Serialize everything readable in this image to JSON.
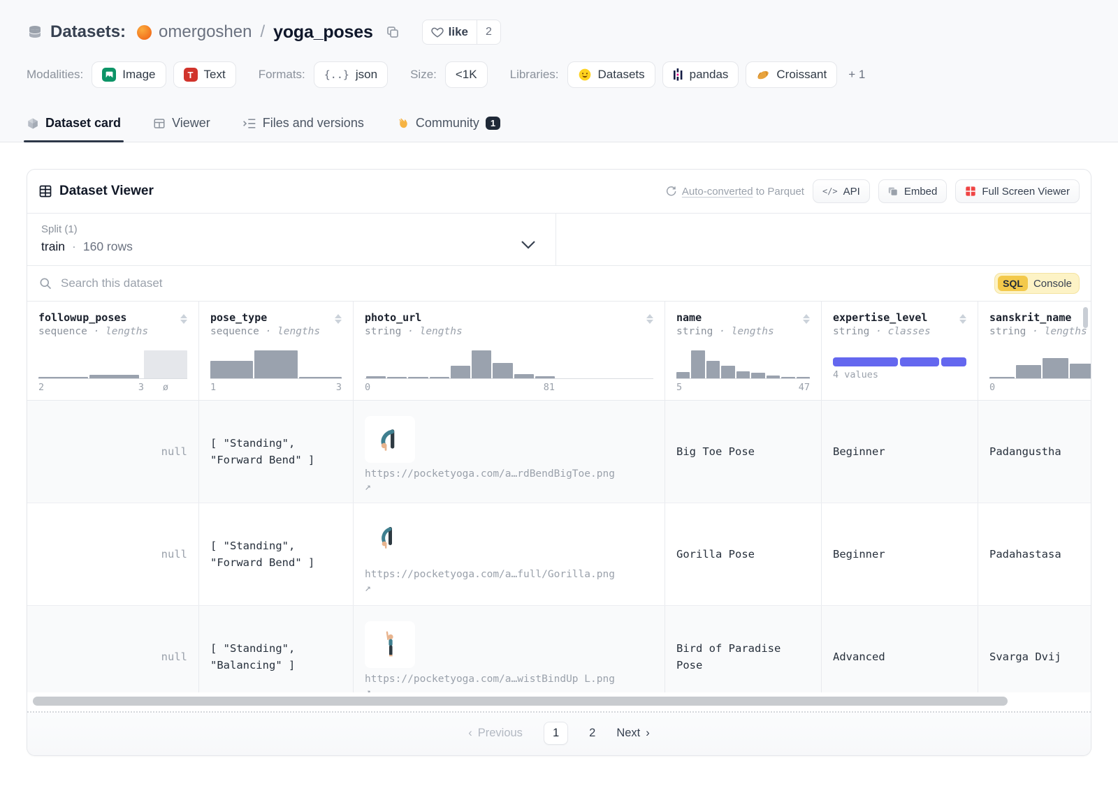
{
  "header": {
    "section_label": "Datasets:",
    "owner": "omergoshen",
    "separator": "/",
    "repo_name": "yoga_poses",
    "like_label": "like",
    "like_count": "2",
    "meta": {
      "modalities_label": "Modalities:",
      "modality_image": "Image",
      "modality_image_glyph": "",
      "modality_text": "Text",
      "modality_text_glyph": "T",
      "formats_label": "Formats:",
      "format_json": "json",
      "json_glyph": "{..}",
      "size_label": "Size:",
      "size_value": "<1K",
      "libraries_label": "Libraries:",
      "lib_datasets": "Datasets",
      "lib_pandas": "pandas",
      "lib_croissant": "Croissant",
      "more_libs": "+ 1"
    },
    "tabs": {
      "card": "Dataset card",
      "viewer": "Viewer",
      "files": "Files and versions",
      "community": "Community",
      "community_badge": "1"
    }
  },
  "viewer": {
    "title": "Dataset Viewer",
    "auto_converted": "Auto-converted",
    "auto_converted_rest": "to Parquet",
    "api_icon": "</>",
    "api_button": "API",
    "embed_button": "Embed",
    "fullscreen_button": "Full Screen Viewer",
    "split_label": "Split (1)",
    "split_name": "train",
    "split_dot": "·",
    "split_rows": "160 rows",
    "search": {
      "placeholder": "Search this dataset"
    },
    "sql_badge": "SQL",
    "sql_console": "Console"
  },
  "table": {
    "columns": [
      {
        "name": "followup_poses",
        "type": "sequence",
        "subtype": "· lengths",
        "min": "2",
        "max": "3",
        "null_label": "ø",
        "hist": [
          4,
          11
        ],
        "null_bar": 87
      },
      {
        "name": "pose_type",
        "type": "sequence",
        "subtype": "· lengths",
        "min": "1",
        "max": "3",
        "hist": [
          54,
          87,
          4
        ]
      },
      {
        "name": "photo_url",
        "type": "string",
        "subtype": "· lengths",
        "min": "0",
        "max": "81",
        "hist": [
          6,
          0,
          0,
          0,
          40,
          87,
          48,
          13,
          6
        ]
      },
      {
        "name": "name",
        "type": "string",
        "subtype": "· lengths",
        "min": "5",
        "max": "47",
        "hist": [
          20,
          87,
          55,
          40,
          22,
          18,
          8,
          3,
          3
        ]
      },
      {
        "name": "expertise_level",
        "type": "string",
        "subtype": "· classes",
        "classes_label": "4 values",
        "classbar": [
          49,
          30,
          19
        ]
      },
      {
        "name": "sanskrit_name",
        "type": "string",
        "subtype": "· lengths",
        "min": "0",
        "hist": [
          5,
          42,
          62,
          45,
          16,
          7
        ]
      }
    ],
    "rows": [
      {
        "followup": "null",
        "pose_type": "[ \"Standing\",\n\"Forward Bend\" ]",
        "photo_url": "https://pocketyoga.com/a…rdBendBigToe.png",
        "link_arrow": "↗",
        "name": "Big Toe Pose",
        "expertise": "Beginner",
        "sanskrit": "Padangustha"
      },
      {
        "followup": "null",
        "pose_type": "[ \"Standing\",\n\"Forward Bend\" ]",
        "photo_url": "https://pocketyoga.com/a…full/Gorilla.png",
        "link_arrow": "↗",
        "name": "Gorilla Pose",
        "expertise": "Beginner",
        "sanskrit": "Padahastasa"
      },
      {
        "followup": "null",
        "pose_type": "[ \"Standing\",\n\"Balancing\" ]",
        "photo_url": "https://pocketyoga.com/a…wistBindUp_L.png",
        "link_arrow": "↗",
        "name": "Bird of Paradise Pose",
        "expertise": "Advanced",
        "sanskrit": "Svarga Dvij"
      }
    ],
    "pagination": {
      "prev_chevron": "‹",
      "previous": "Previous",
      "page1": "1",
      "page2": "2",
      "next": "Next",
      "next_chevron": "›"
    }
  },
  "colors": {
    "accent_indigo": "#6467ef",
    "hist_gray": "#9aa2ae",
    "sql_yellow": "#f3c94b",
    "modality_green": "#0d9467",
    "modality_red": "#d1342c",
    "fullscreen_red": "#ef4444"
  }
}
